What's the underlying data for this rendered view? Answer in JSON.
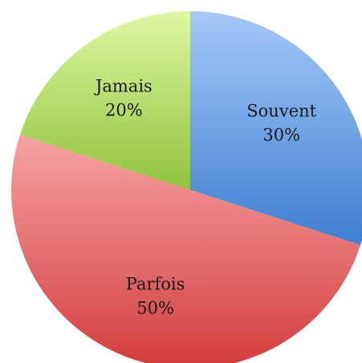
{
  "chart_data": {
    "type": "pie",
    "title": "",
    "categories": [
      "Souvent",
      "Parfois",
      "Jamais"
    ],
    "values": [
      30,
      50,
      20
    ],
    "value_labels": [
      "30%",
      "50%",
      "20%"
    ],
    "start_angle_deg": 0,
    "direction": "clockwise",
    "legend": "none",
    "colors": {
      "Souvent": {
        "light": "#a6c8f7",
        "dark": "#3d7fd1"
      },
      "Parfois": {
        "light": "#f7a3a3",
        "dark": "#d23c3c"
      },
      "Jamais": {
        "light": "#dff7a2",
        "dark": "#8fc33d"
      }
    }
  }
}
